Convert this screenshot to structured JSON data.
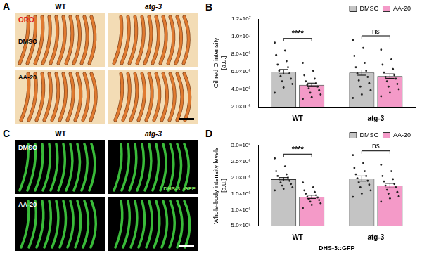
{
  "image_panels": [
    {
      "panel": "A",
      "columns": [
        "WT",
        "atg-3"
      ],
      "rows": [
        "DMSO",
        "AA-20"
      ],
      "stain": "ORO",
      "color": "#e0201a"
    },
    {
      "panel": "C",
      "columns": [
        "WT",
        "atg-3"
      ],
      "rows": [
        "DMSO",
        "AA-20"
      ],
      "stain": "DHS-3::GFP",
      "color": "#7ddc5a"
    }
  ],
  "chart_data": [
    {
      "type": "bar",
      "panel": "B",
      "categories": [
        "WT",
        "atg-3"
      ],
      "y_label": [
        "Oil red O intensity",
        "[a.u.]"
      ],
      "ylim": [
        2000000,
        12000000
      ],
      "yticks": [
        {
          "value": 2000000,
          "label": "2.0×10⁶"
        },
        {
          "value": 4000000,
          "label": "4.0×10⁶"
        },
        {
          "value": 6000000,
          "label": "6.0×10⁶"
        },
        {
          "value": 8000000,
          "label": "8.0×10⁶"
        },
        {
          "value": 10000000,
          "label": "1.0×10⁷"
        },
        {
          "value": 12000000,
          "label": "1.2×10⁷"
        }
      ],
      "grid": false,
      "legend": "top-right",
      "series": [
        {
          "name": "DMSO",
          "color": "#c4c4c4",
          "values": [
            6000000,
            5900000
          ],
          "errors": [
            250000,
            300000
          ],
          "points": [
            [
              9300000,
              8400000,
              7900000,
              7200000,
              6800000,
              6500000,
              6100000,
              5800000,
              5500000,
              5200000,
              4900000,
              4600000,
              4200000,
              3600000
            ],
            [
              9600000,
              8700000,
              7800000,
              7000000,
              6500000,
              6100000,
              5800000,
              5400000,
              5000000,
              4700000,
              4300000,
              3900000,
              3400000,
              3000000
            ]
          ]
        },
        {
          "name": "AA-20",
          "color": "#f49ac8",
          "values": [
            4500000,
            5500000
          ],
          "errors": [
            200000,
            250000
          ],
          "points": [
            [
              7000000,
              6100000,
              5600000,
              5200000,
              4900000,
              4700000,
              4500000,
              4300000,
              4100000,
              3900000,
              3600000,
              3400000,
              3100000,
              2900000
            ],
            [
              8500000,
              7400000,
              6800000,
              6300000,
              5900000,
              5600000,
              5400000,
              5200000,
              4900000,
              4600000,
              4300000,
              4000000,
              3600000,
              3200000
            ]
          ]
        }
      ],
      "significance": [
        {
          "category": "WT",
          "label": "****"
        },
        {
          "category": "atg-3",
          "label": "ns"
        }
      ]
    },
    {
      "type": "bar",
      "panel": "D",
      "categories": [
        "WT",
        "atg-3"
      ],
      "x_label": "DHS-3::GFP",
      "y_label": [
        "Whole-body intensity levels",
        "[a.u.]"
      ],
      "ylim": [
        500000,
        3000000
      ],
      "yticks": [
        {
          "value": 500000,
          "label": "5.0×10⁵"
        },
        {
          "value": 1000000,
          "label": "1.0×10⁶"
        },
        {
          "value": 1500000,
          "label": "1.5×10⁶"
        },
        {
          "value": 2000000,
          "label": "2.0×10⁶"
        },
        {
          "value": 2500000,
          "label": "2.5×10⁶"
        },
        {
          "value": 3000000,
          "label": "3.0×10⁶"
        }
      ],
      "grid": false,
      "legend": "top-right",
      "series": [
        {
          "name": "DMSO",
          "color": "#c4c4c4",
          "values": [
            1950000,
            1970000
          ],
          "errors": [
            50000,
            80000
          ],
          "points": [
            [
              2600000,
              2350000,
              2200000,
              2100000,
              2050000,
              2000000,
              1950000,
              1900000,
              1850000,
              1800000,
              1750000,
              1700000,
              1650000,
              1600000
            ],
            [
              2700000,
              2450000,
              2300000,
              2200000,
              2100000,
              2050000,
              1980000,
              1900000,
              1850000,
              1780000,
              1700000,
              1600000,
              1500000,
              1400000
            ]
          ]
        },
        {
          "name": "AA-20",
          "color": "#f49ac8",
          "values": [
            1400000,
            1750000
          ],
          "errors": [
            50000,
            70000
          ],
          "points": [
            [
              1850000,
              1700000,
              1600000,
              1550000,
              1500000,
              1450000,
              1400000,
              1380000,
              1330000,
              1300000,
              1250000,
              1200000,
              1150000,
              1050000
            ],
            [
              2400000,
              2200000,
              2050000,
              1950000,
              1880000,
              1800000,
              1750000,
              1700000,
              1620000,
              1550000,
              1500000,
              1420000,
              1350000,
              1250000
            ]
          ]
        }
      ],
      "significance": [
        {
          "category": "WT",
          "label": "****"
        },
        {
          "category": "atg-3",
          "label": "ns"
        }
      ]
    }
  ]
}
